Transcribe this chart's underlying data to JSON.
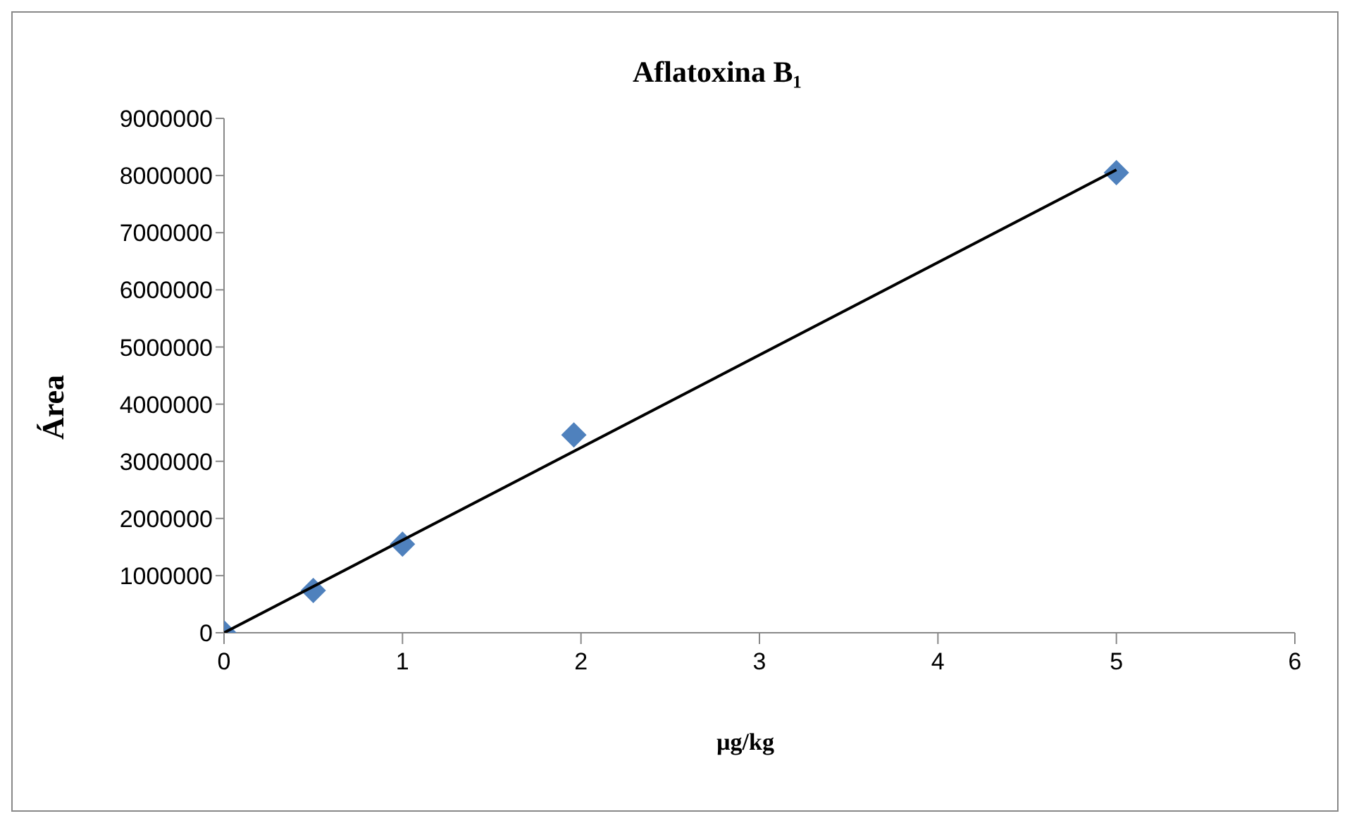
{
  "chart_data": {
    "type": "scatter",
    "title": "Aflatoxina B₁",
    "xlabel": "µg/kg",
    "ylabel": "Área",
    "xlim": [
      0,
      6
    ],
    "xticks": [
      0,
      1,
      2,
      3,
      4,
      5,
      6
    ],
    "ylim": [
      0,
      9000000
    ],
    "yticks": [
      0,
      1000000,
      2000000,
      3000000,
      4000000,
      5000000,
      6000000,
      7000000,
      8000000,
      9000000
    ],
    "grid": false,
    "marker": "diamond",
    "series": [
      {
        "type": "scatter",
        "color": "#4f81bd",
        "x": [
          0,
          0.5,
          1,
          1.96,
          5
        ],
        "values": [
          0,
          740000,
          1550000,
          3460000,
          8050000
        ]
      },
      {
        "type": "line",
        "color": "#000000",
        "x": [
          0,
          5
        ],
        "values": [
          0,
          8100000
        ],
        "marker": "none",
        "line_style": "solid"
      }
    ]
  }
}
